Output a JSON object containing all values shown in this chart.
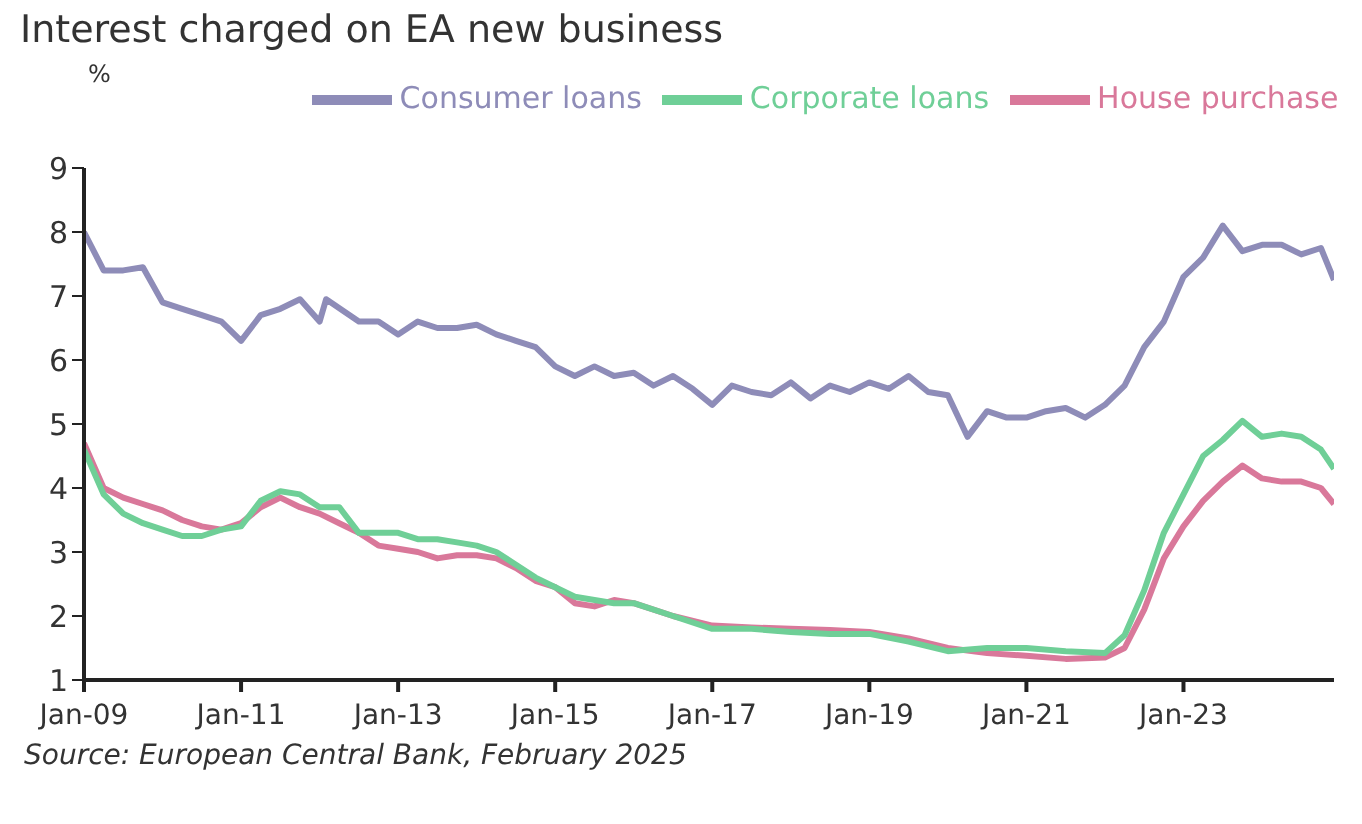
{
  "chart_data": {
    "type": "line",
    "title": "Interest charged on EA new business",
    "ylabel": "%",
    "annotations": [
      "Source: European Central Bank, February 2025"
    ],
    "xlim": [
      "2009-01",
      "2024-12"
    ],
    "xticks": [
      {
        "value": "2009-01",
        "label": "Jan-09"
      },
      {
        "value": "2011-01",
        "label": "Jan-11"
      },
      {
        "value": "2013-01",
        "label": "Jan-13"
      },
      {
        "value": "2015-01",
        "label": "Jan-15"
      },
      {
        "value": "2017-01",
        "label": "Jan-17"
      },
      {
        "value": "2019-01",
        "label": "Jan-19"
      },
      {
        "value": "2021-01",
        "label": "Jan-21"
      },
      {
        "value": "2023-01",
        "label": "Jan-23"
      }
    ],
    "ylim": [
      1,
      9
    ],
    "yticks": [
      1,
      2,
      3,
      4,
      5,
      6,
      7,
      8,
      9
    ],
    "grid": false,
    "legend": "top",
    "marker": "none",
    "line_style": "solid",
    "series": [
      {
        "name": "Consumer loans",
        "color": "#8e8cb8",
        "x": [
          "2009-01",
          "2009-04",
          "2009-07",
          "2009-10",
          "2010-01",
          "2010-04",
          "2010-07",
          "2010-10",
          "2011-01",
          "2011-04",
          "2011-07",
          "2011-10",
          "2012-01",
          "2012-02",
          "2012-07",
          "2012-10",
          "2013-01",
          "2013-04",
          "2013-07",
          "2013-10",
          "2014-01",
          "2014-04",
          "2014-07",
          "2014-10",
          "2015-01",
          "2015-04",
          "2015-07",
          "2015-10",
          "2016-01",
          "2016-04",
          "2016-07",
          "2016-10",
          "2017-01",
          "2017-04",
          "2017-07",
          "2017-10",
          "2018-01",
          "2018-04",
          "2018-07",
          "2018-10",
          "2019-01",
          "2019-04",
          "2019-07",
          "2019-10",
          "2020-01",
          "2020-04",
          "2020-07",
          "2020-10",
          "2021-01",
          "2021-04",
          "2021-07",
          "2021-10",
          "2022-01",
          "2022-04",
          "2022-07",
          "2022-10",
          "2023-01",
          "2023-04",
          "2023-07",
          "2023-10",
          "2024-01",
          "2024-04",
          "2024-07",
          "2024-10",
          "2024-12"
        ],
        "values": [
          8.0,
          7.4,
          7.4,
          7.45,
          6.9,
          6.8,
          6.7,
          6.6,
          6.3,
          6.7,
          6.8,
          6.95,
          6.6,
          6.95,
          6.6,
          6.6,
          6.4,
          6.6,
          6.5,
          6.5,
          6.55,
          6.4,
          6.3,
          6.2,
          5.9,
          5.75,
          5.9,
          5.75,
          5.8,
          5.6,
          5.75,
          5.55,
          5.3,
          5.6,
          5.5,
          5.45,
          5.65,
          5.4,
          5.6,
          5.5,
          5.65,
          5.55,
          5.75,
          5.5,
          5.45,
          4.8,
          5.2,
          5.1,
          5.1,
          5.2,
          5.25,
          5.1,
          5.3,
          5.6,
          6.2,
          6.6,
          7.3,
          7.6,
          8.1,
          7.7,
          7.8,
          7.8,
          7.65,
          7.75,
          7.25
        ]
      },
      {
        "name": "House purchase",
        "color": "#d9789a",
        "x": [
          "2009-01",
          "2009-04",
          "2009-07",
          "2009-10",
          "2010-01",
          "2010-04",
          "2010-07",
          "2010-10",
          "2011-01",
          "2011-04",
          "2011-07",
          "2011-10",
          "2012-01",
          "2012-04",
          "2012-07",
          "2012-10",
          "2013-01",
          "2013-04",
          "2013-07",
          "2013-10",
          "2014-01",
          "2014-04",
          "2014-07",
          "2014-10",
          "2015-01",
          "2015-04",
          "2015-07",
          "2015-10",
          "2016-01",
          "2016-07",
          "2017-01",
          "2017-07",
          "2018-01",
          "2018-07",
          "2019-01",
          "2019-07",
          "2020-01",
          "2020-07",
          "2021-01",
          "2021-07",
          "2022-01",
          "2022-04",
          "2022-07",
          "2022-10",
          "2023-01",
          "2023-04",
          "2023-07",
          "2023-10",
          "2024-01",
          "2024-04",
          "2024-07",
          "2024-10",
          "2024-12"
        ],
        "values": [
          4.7,
          4.0,
          3.85,
          3.75,
          3.65,
          3.5,
          3.4,
          3.35,
          3.45,
          3.7,
          3.85,
          3.7,
          3.6,
          3.45,
          3.3,
          3.1,
          3.05,
          3.0,
          2.9,
          2.95,
          2.95,
          2.9,
          2.75,
          2.55,
          2.45,
          2.2,
          2.15,
          2.25,
          2.2,
          2.0,
          1.85,
          1.82,
          1.8,
          1.78,
          1.75,
          1.65,
          1.5,
          1.42,
          1.38,
          1.33,
          1.35,
          1.5,
          2.1,
          2.9,
          3.4,
          3.8,
          4.1,
          4.35,
          4.15,
          4.1,
          4.1,
          4.0,
          3.75
        ]
      },
      {
        "name": "Corporate loans",
        "color": "#6fcf97",
        "x": [
          "2009-01",
          "2009-04",
          "2009-07",
          "2009-10",
          "2010-01",
          "2010-04",
          "2010-07",
          "2010-10",
          "2011-01",
          "2011-04",
          "2011-07",
          "2011-10",
          "2012-01",
          "2012-04",
          "2012-07",
          "2012-10",
          "2013-01",
          "2013-04",
          "2013-07",
          "2013-10",
          "2014-01",
          "2014-04",
          "2014-07",
          "2014-10",
          "2015-01",
          "2015-04",
          "2015-07",
          "2015-10",
          "2016-01",
          "2016-07",
          "2017-01",
          "2017-07",
          "2018-01",
          "2018-07",
          "2019-01",
          "2019-07",
          "2020-01",
          "2020-07",
          "2021-01",
          "2021-07",
          "2022-01",
          "2022-04",
          "2022-07",
          "2022-10",
          "2023-01",
          "2023-04",
          "2023-07",
          "2023-10",
          "2024-01",
          "2024-04",
          "2024-07",
          "2024-10",
          "2024-12"
        ],
        "values": [
          4.6,
          3.9,
          3.6,
          3.45,
          3.35,
          3.25,
          3.25,
          3.35,
          3.4,
          3.8,
          3.95,
          3.9,
          3.7,
          3.7,
          3.3,
          3.3,
          3.3,
          3.2,
          3.2,
          3.15,
          3.1,
          3.0,
          2.8,
          2.6,
          2.45,
          2.3,
          2.25,
          2.2,
          2.2,
          2.0,
          1.8,
          1.8,
          1.75,
          1.72,
          1.72,
          1.6,
          1.45,
          1.5,
          1.5,
          1.45,
          1.42,
          1.7,
          2.4,
          3.3,
          3.9,
          4.5,
          4.75,
          5.05,
          4.8,
          4.85,
          4.8,
          4.6,
          4.3
        ]
      }
    ]
  }
}
